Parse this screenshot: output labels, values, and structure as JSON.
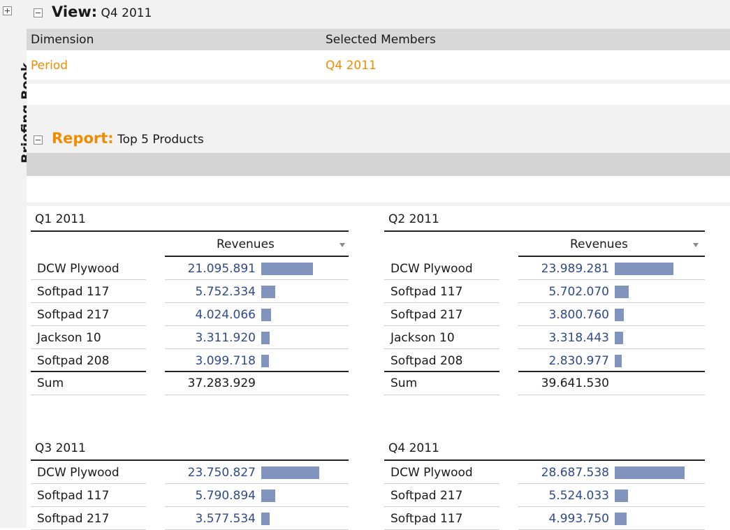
{
  "sidebar": {
    "tab_label": "Briefing Book"
  },
  "view": {
    "title": "View:",
    "value": "Q4 2011",
    "columns": [
      "Dimension",
      "Selected Members"
    ],
    "rows": [
      {
        "dimension": "Period",
        "member": "Q4 2011"
      }
    ]
  },
  "report": {
    "title": "Report:",
    "value": "Top 5 Products"
  },
  "measure_label": "Revenues",
  "bar_max": 28687538,
  "tables": [
    {
      "quarter": "Q1 2011",
      "rows": [
        {
          "product": "DCW Plywood",
          "value": "21.095.891",
          "raw": 21095891
        },
        {
          "product": "Softpad 117",
          "value": "5.752.334",
          "raw": 5752334
        },
        {
          "product": "Softpad 217",
          "value": "4.024.066",
          "raw": 4024066
        },
        {
          "product": "Jackson 10",
          "value": "3.311.920",
          "raw": 3311920
        },
        {
          "product": "Softpad 208",
          "value": "3.099.718",
          "raw": 3099718
        }
      ],
      "sum_label": "Sum",
      "sum": "37.283.929"
    },
    {
      "quarter": "Q2 2011",
      "rows": [
        {
          "product": "DCW Plywood",
          "value": "23.989.281",
          "raw": 23989281
        },
        {
          "product": "Softpad 117",
          "value": "5.702.070",
          "raw": 5702070
        },
        {
          "product": "Softpad 217",
          "value": "3.800.760",
          "raw": 3800760
        },
        {
          "product": "Jackson 10",
          "value": "3.318.443",
          "raw": 3318443
        },
        {
          "product": "Softpad 208",
          "value": "2.830.977",
          "raw": 2830977
        }
      ],
      "sum_label": "Sum",
      "sum": "39.641.530"
    },
    {
      "quarter": "Q3 2011",
      "rows": [
        {
          "product": "DCW Plywood",
          "value": "23.750.827",
          "raw": 23750827
        },
        {
          "product": "Softpad 117",
          "value": "5.790.894",
          "raw": 5790894
        },
        {
          "product": "Softpad 217",
          "value": "3.577.534",
          "raw": 3577534
        }
      ]
    },
    {
      "quarter": "Q4 2011",
      "rows": [
        {
          "product": "DCW Plywood",
          "value": "28.687.538",
          "raw": 28687538
        },
        {
          "product": "Softpad 217",
          "value": "5.524.033",
          "raw": 5524033
        },
        {
          "product": "Softpad 117",
          "value": "4.993.750",
          "raw": 4993750
        }
      ]
    }
  ]
}
